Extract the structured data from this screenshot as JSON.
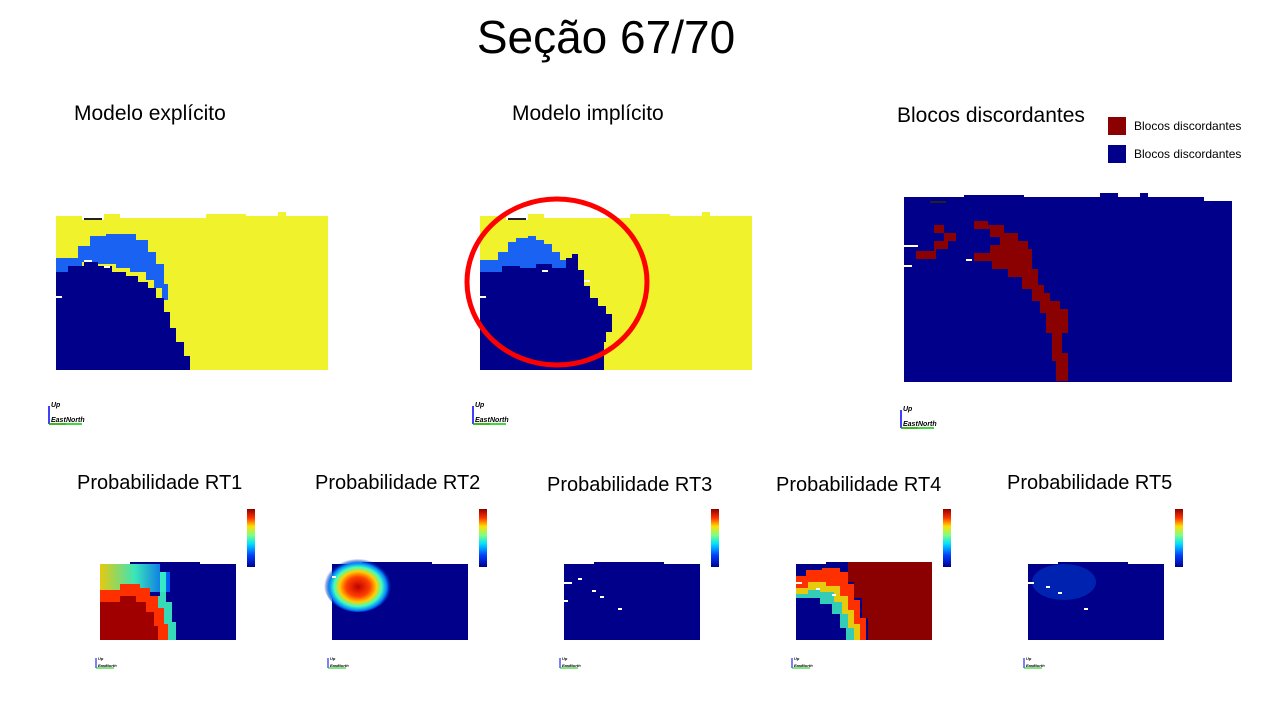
{
  "slide": {
    "title": "Seção 67/70"
  },
  "colors": {
    "yellow": "#f0f22c",
    "light_blue": "#1a62f2",
    "dark_blue": "#00008b",
    "dark_red": "#8b0000",
    "circle_red": "#ff0000",
    "prob_red": "#a00000",
    "prob_blue": "#00008b"
  },
  "panels": {
    "explicit": {
      "title": "Modelo explícito"
    },
    "implicit": {
      "title": "Modelo implícito",
      "highlight": "red-circle"
    },
    "discordant": {
      "title": "Blocos discordantes",
      "legend": [
        {
          "label": "Blocos discordantes",
          "color": "#8b0000"
        },
        {
          "label": "Blocos discordantes",
          "color": "#00008b"
        }
      ]
    }
  },
  "probabilities": [
    {
      "title": "Probabilidade RT1"
    },
    {
      "title": "Probabilidade RT2"
    },
    {
      "title": "Probabilidade RT3"
    },
    {
      "title": "Probabilidade RT4"
    },
    {
      "title": "Probabilidade RT5"
    }
  ],
  "axes": {
    "up": "Up",
    "east": "East",
    "north": "North"
  }
}
